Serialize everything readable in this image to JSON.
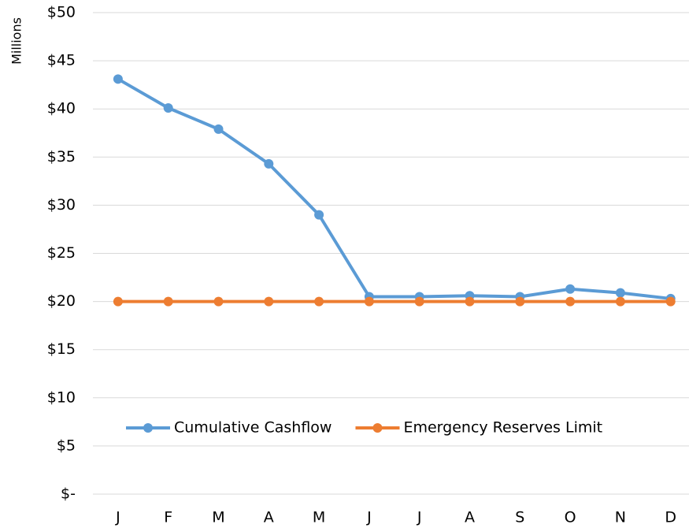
{
  "chart_data": {
    "type": "line",
    "y_label": "Millions",
    "categories": [
      "J",
      "F",
      "M",
      "A",
      "M",
      "J",
      "J",
      "A",
      "S",
      "O",
      "N",
      "D"
    ],
    "series": [
      {
        "name": "Cumulative Cashflow",
        "color": "#5b9bd5",
        "values": [
          43.1,
          40.1,
          37.9,
          34.3,
          29.0,
          20.5,
          20.5,
          20.6,
          20.5,
          21.3,
          20.9,
          20.3
        ]
      },
      {
        "name": "Emergency Reserves Limit",
        "color": "#ed7d31",
        "values": [
          20,
          20,
          20,
          20,
          20,
          20,
          20,
          20,
          20,
          20,
          20,
          20
        ]
      }
    ],
    "ylim": [
      0,
      50
    ],
    "yticks": [
      {
        "value": 0,
        "label": "$-"
      },
      {
        "value": 5,
        "label": "$5"
      },
      {
        "value": 10,
        "label": "$10"
      },
      {
        "value": 15,
        "label": "$15"
      },
      {
        "value": 20,
        "label": "$20"
      },
      {
        "value": 25,
        "label": "$25"
      },
      {
        "value": 30,
        "label": "$30"
      },
      {
        "value": 35,
        "label": "$35"
      },
      {
        "value": 40,
        "label": "$40"
      },
      {
        "value": 45,
        "label": "$45"
      },
      {
        "value": 50,
        "label": "$50"
      }
    ],
    "grid": true,
    "legend": "lower left"
  }
}
